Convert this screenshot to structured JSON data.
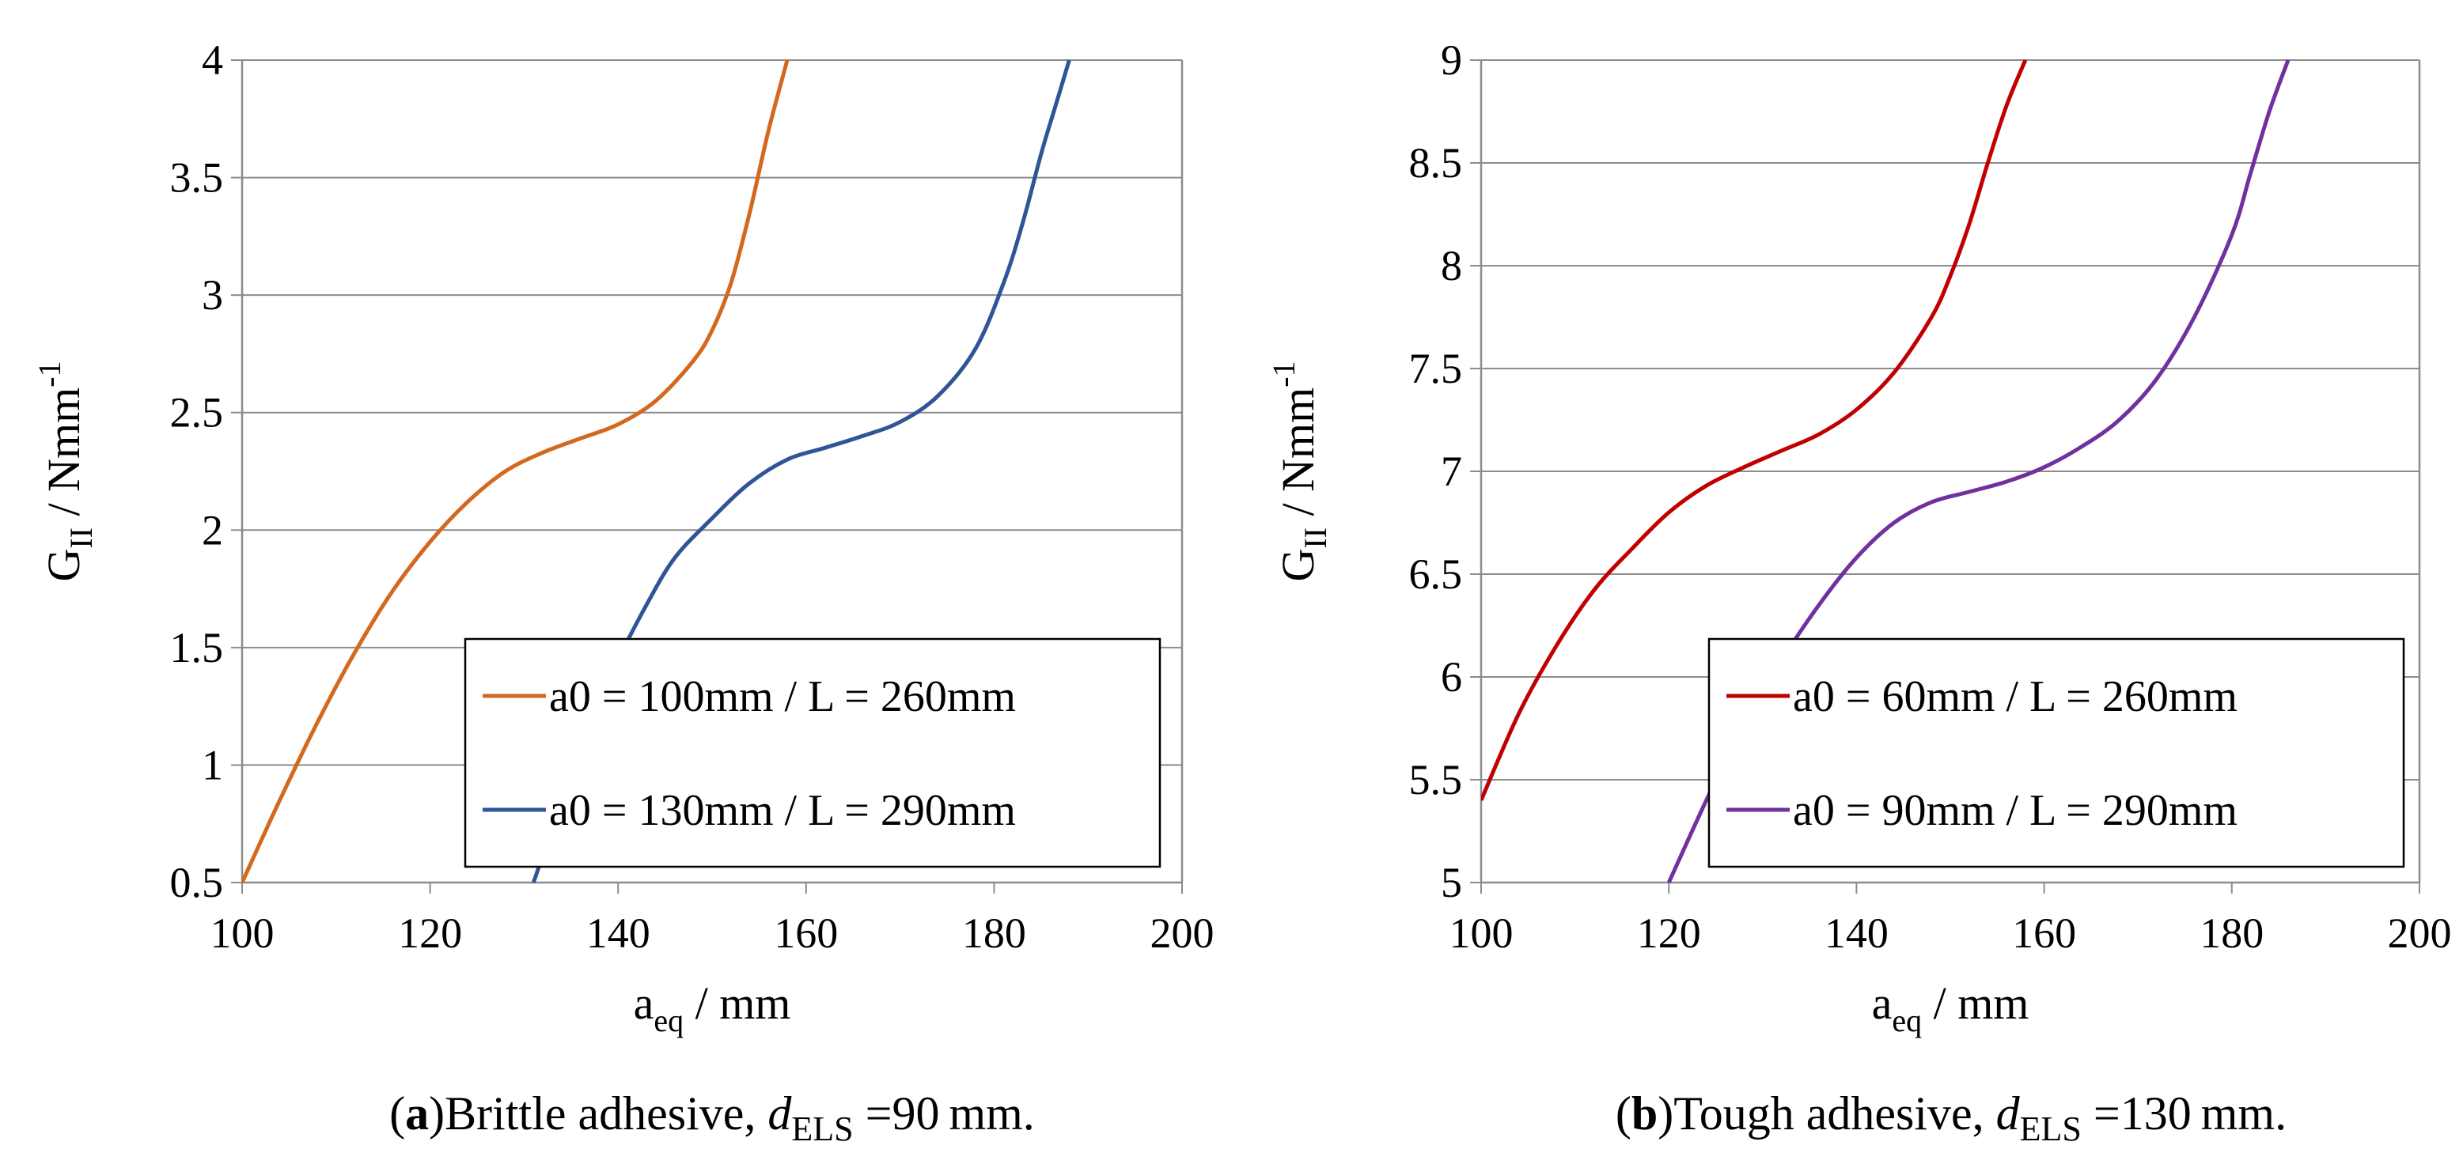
{
  "chart_data": [
    {
      "type": "line",
      "panel": "(a)",
      "caption": {
        "label": "(a)",
        "letter": "a",
        "text": "Brittle adhesive, ",
        "d_symbol": "d",
        "d_subscript": "ELS",
        "d_value": "=90",
        "unit": "mm."
      },
      "xlabel": {
        "main": "a",
        "sub": "eq",
        "rest": " / mm"
      },
      "ylabel": {
        "main": "G",
        "sub": "II",
        "rest": " / Nmm",
        "sup": "-1"
      },
      "xlim": [
        100,
        200
      ],
      "ylim": [
        0.5,
        4
      ],
      "xticks": [
        "100",
        "120",
        "140",
        "160",
        "180",
        "200"
      ],
      "yticks": [
        "0.5",
        "1",
        "1.5",
        "2",
        "2.5",
        "3",
        "3.5",
        "4"
      ],
      "grid": "horizontal",
      "legend_position": "bottom-right",
      "series": [
        {
          "name": "a0 = 100mm / L = 260mm",
          "color": "#d2691e",
          "x": [
            100,
            104,
            108,
            112,
            116,
            120,
            124,
            128,
            132,
            136,
            140,
            144,
            148,
            150,
            152,
            154,
            156,
            158
          ],
          "y": [
            0.5,
            0.85,
            1.18,
            1.48,
            1.74,
            1.95,
            2.12,
            2.25,
            2.33,
            2.39,
            2.45,
            2.55,
            2.72,
            2.85,
            3.05,
            3.35,
            3.7,
            4.0
          ]
        },
        {
          "name": "a0 = 130mm / L = 290mm",
          "color": "#2f5597",
          "x": [
            131,
            134,
            137,
            140,
            143,
            146,
            150,
            154,
            158,
            162,
            166,
            170,
            174,
            178,
            181,
            183,
            185,
            186.5,
            188
          ],
          "y": [
            0.5,
            0.85,
            1.2,
            1.45,
            1.68,
            1.88,
            2.05,
            2.2,
            2.3,
            2.35,
            2.4,
            2.46,
            2.57,
            2.77,
            3.05,
            3.3,
            3.6,
            3.8,
            4.0
          ]
        }
      ]
    },
    {
      "type": "line",
      "panel": "(b)",
      "caption": {
        "label": "(b)",
        "letter": "b",
        "text": "Tough adhesive, ",
        "d_symbol": "d",
        "d_subscript": "ELS",
        "d_value": "=130",
        "unit": "mm."
      },
      "xlabel": {
        "main": "a",
        "sub": "eq",
        "rest": " / mm"
      },
      "ylabel": {
        "main": "G",
        "sub": "II",
        "rest": " / Nmm",
        "sup": "-1"
      },
      "xlim": [
        100,
        200
      ],
      "ylim": [
        5,
        9
      ],
      "xticks": [
        "100",
        "120",
        "140",
        "160",
        "180",
        "200"
      ],
      "yticks": [
        "5",
        "5.5",
        "6",
        "6.5",
        "7",
        "7.5",
        "8",
        "8.5",
        "9"
      ],
      "grid": "horizontal",
      "legend_position": "bottom-right",
      "series": [
        {
          "name": "a0 = 60mm / L = 260mm",
          "color": "#c00000",
          "x": [
            100,
            104,
            108,
            112,
            116,
            120,
            124,
            128,
            132,
            136,
            140,
            144,
            148,
            150,
            152,
            154,
            156,
            158
          ],
          "y": [
            5.4,
            5.82,
            6.15,
            6.42,
            6.62,
            6.8,
            6.93,
            7.02,
            7.1,
            7.18,
            7.3,
            7.48,
            7.75,
            7.95,
            8.2,
            8.5,
            8.78,
            9.0
          ]
        },
        {
          "name": "a0 = 90mm / L = 290mm",
          "color": "#7030a0",
          "x": [
            120,
            124,
            128,
            132,
            136,
            140,
            144,
            148,
            152,
            156,
            160,
            164,
            168,
            172,
            176,
            180,
            182,
            184,
            186
          ],
          "y": [
            5.0,
            5.4,
            5.78,
            6.08,
            6.35,
            6.58,
            6.75,
            6.85,
            6.9,
            6.95,
            7.02,
            7.12,
            7.25,
            7.45,
            7.75,
            8.15,
            8.45,
            8.75,
            9.0
          ]
        }
      ]
    }
  ]
}
